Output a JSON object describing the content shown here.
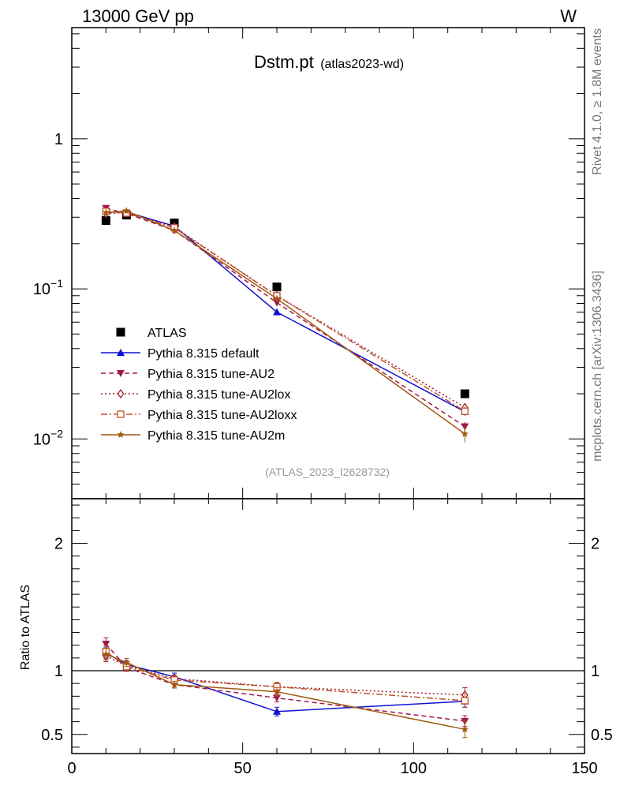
{
  "header": {
    "left_label": "13000 GeV pp",
    "right_label": "W"
  },
  "side_labels": {
    "rivet": "Rivet 4.1.0, ≥ 1.8M events",
    "mcplots": "mcplots.cern.ch [arXiv:1306.3436]"
  },
  "chart_data": {
    "type": "line",
    "title": "Dstm.pt",
    "subtitle": "(atlas2023-wd)",
    "watermark": "(ATLAS_2023_I2628732)",
    "xlabel": "",
    "ylabel": "",
    "ratio_ylabel": "Ratio to ATLAS",
    "xlim": [
      0,
      150
    ],
    "ylim_log": [
      0.004,
      5.5
    ],
    "ratio_ylim": [
      0.35,
      2.35
    ],
    "x_ticks": [
      0,
      50,
      100,
      150
    ],
    "x_tick_labels": [
      "0",
      "50",
      "100",
      "150"
    ],
    "y_ticks": [
      0.01,
      0.1,
      1
    ],
    "y_tick_labels_main": [
      "10",
      "10",
      "1"
    ],
    "y_tick_exponents": [
      "−2",
      "−1",
      ""
    ],
    "ratio_ticks": [
      0.5,
      1,
      2
    ],
    "ratio_tick_labels": [
      "0.5",
      "1",
      "2"
    ],
    "x": [
      10,
      16,
      30,
      60,
      115
    ],
    "data": {
      "name": "ATLAS",
      "values": [
        0.285,
        0.31,
        0.275,
        0.103,
        0.02
      ]
    },
    "series": [
      {
        "name": "Pythia 8.315 default",
        "color": "#1010d0",
        "dash": "",
        "marker": "triangle-up",
        "values": [
          0.325,
          0.325,
          0.262,
          0.07,
          0.0152
        ],
        "ratio_err": [
          0.04,
          0.03,
          0.03,
          0.05,
          0.06
        ]
      },
      {
        "name": "Pythia 8.315 tune-AU2",
        "color": "#a0184a",
        "dash": "6,4",
        "marker": "triangle-down",
        "values": [
          0.345,
          0.318,
          0.245,
          0.081,
          0.0121
        ],
        "ratio_err": [
          0.04,
          0.03,
          0.03,
          0.04,
          0.07
        ]
      },
      {
        "name": "Pythia 8.315 tune-AU2lox",
        "color": "#a0202a",
        "dash": "2,3",
        "marker": "diamond-open",
        "values": [
          0.318,
          0.322,
          0.258,
          0.09,
          0.0162
        ],
        "ratio_err": [
          0.04,
          0.03,
          0.03,
          0.04,
          0.07
        ]
      },
      {
        "name": "Pythia 8.315 tune-AU2loxx",
        "color": "#c0502a",
        "dash": "8,3,2,3",
        "marker": "square-open",
        "values": [
          0.328,
          0.32,
          0.255,
          0.09,
          0.0153
        ],
        "ratio_err": [
          0.04,
          0.03,
          0.03,
          0.04,
          0.07
        ]
      },
      {
        "name": "Pythia 8.315 tune-AU2m",
        "color": "#a05810",
        "dash": "",
        "marker": "star",
        "values": [
          0.322,
          0.33,
          0.245,
          0.086,
          0.0108
        ],
        "ratio_err": [
          0.04,
          0.03,
          0.03,
          0.04,
          0.12
        ]
      }
    ]
  }
}
